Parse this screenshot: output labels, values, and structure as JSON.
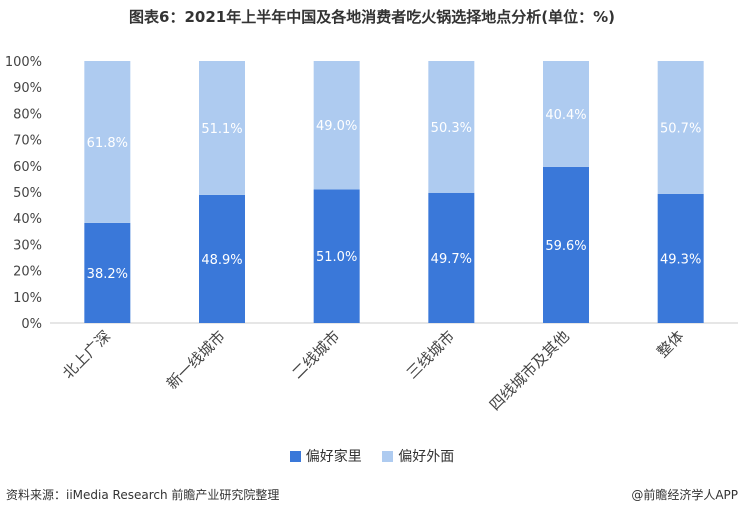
{
  "title": "图表6：2021年上半年中国及各地消费者吃火锅选择地点分析(单位：%)",
  "source": "资料来源：iiMedia Research 前瞻产业研究院整理",
  "brand": "@前瞻经济学人APP",
  "colors": {
    "home": "#3a78d9",
    "outside": "#aecbf0"
  },
  "chart_data": {
    "type": "bar",
    "stacked": true,
    "categories": [
      "北上广深",
      "新一线城市",
      "二线城市",
      "三线城市",
      "四线城市及其他",
      "整体"
    ],
    "series": [
      {
        "name": "偏好家里",
        "values": [
          38.2,
          48.9,
          51.0,
          49.7,
          59.6,
          49.3
        ],
        "labels": [
          "38.2%",
          "48.9%",
          "51.0%",
          "49.7%",
          "59.6%",
          "49.3%"
        ]
      },
      {
        "name": "偏好外面",
        "values": [
          61.8,
          51.1,
          49.0,
          50.3,
          40.4,
          50.7
        ],
        "labels": [
          "61.8%",
          "51.1%",
          "49.0%",
          "50.3%",
          "40.4%",
          "50.7%"
        ]
      }
    ],
    "yticks": [
      "0%",
      "10%",
      "20%",
      "30%",
      "40%",
      "50%",
      "60%",
      "70%",
      "80%",
      "90%",
      "100%"
    ],
    "ylim": [
      0,
      100
    ],
    "grid": false,
    "legend_position": "bottom"
  }
}
